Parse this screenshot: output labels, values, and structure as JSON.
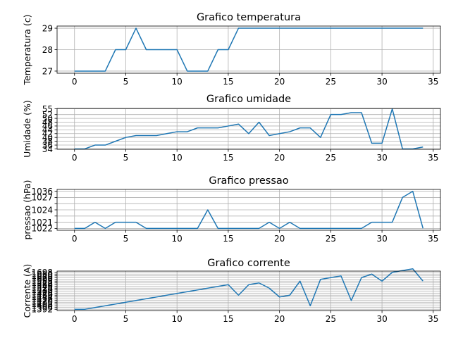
{
  "chart_data": [
    {
      "type": "line",
      "title": "Grafico temperatura",
      "xlabel": "",
      "ylabel": "Temperatura (c)",
      "xlim": [
        -1.7,
        35.7
      ],
      "ylim": [
        26.9,
        29.1
      ],
      "grid": true,
      "xticks": [
        0,
        5,
        10,
        15,
        20,
        25,
        30,
        35
      ],
      "xtick_labels": [
        "0",
        "5",
        "10",
        "15",
        "20",
        "25",
        "30",
        "35"
      ],
      "yticks": [
        27,
        28,
        29
      ],
      "ytick_labels": [
        "27",
        "28",
        "29"
      ],
      "color": "#1f77b4",
      "x": [
        0,
        1,
        2,
        3,
        4,
        5,
        6,
        7,
        8,
        9,
        10,
        11,
        12,
        13,
        14,
        15,
        16,
        17,
        18,
        19,
        20,
        21,
        22,
        23,
        24,
        25,
        26,
        27,
        28,
        29,
        30,
        31,
        32,
        33,
        34
      ],
      "values": [
        27,
        27,
        27,
        27,
        28,
        28,
        29,
        28,
        28,
        28,
        28,
        27,
        27,
        27,
        28,
        28,
        29,
        29,
        29,
        29,
        29,
        29,
        29,
        29,
        29,
        29,
        29,
        29,
        29,
        29,
        29,
        29,
        29,
        29,
        29
      ]
    },
    {
      "type": "line",
      "title": "Grafico umidade",
      "xlabel": "",
      "ylabel": "Umidade (%)",
      "xlim": [
        -1.7,
        35.7
      ],
      "ylim": [
        33.8,
        55.2
      ],
      "grid": true,
      "xticks": [
        0,
        5,
        10,
        15,
        20,
        25,
        30,
        35
      ],
      "xtick_labels": [
        "0",
        "5",
        "10",
        "15",
        "20",
        "25",
        "30",
        "35"
      ],
      "yticks": [
        34,
        36,
        38,
        40,
        42,
        44,
        46,
        48,
        50,
        52,
        55
      ],
      "ytick_labels": [
        "34",
        "36",
        "38",
        "40",
        "42",
        "44",
        "46",
        "48",
        "50",
        "52",
        "55"
      ],
      "color": "#1f77b4",
      "x": [
        0,
        1,
        2,
        3,
        4,
        5,
        6,
        7,
        8,
        9,
        10,
        11,
        12,
        13,
        14,
        15,
        16,
        17,
        18,
        19,
        20,
        21,
        22,
        23,
        24,
        25,
        26,
        27,
        28,
        29,
        30,
        31,
        32,
        33,
        34
      ],
      "values": [
        34,
        34,
        36,
        36,
        38,
        40,
        41,
        41,
        41,
        42,
        43,
        43,
        45,
        45,
        45,
        46,
        47,
        42,
        48,
        41,
        42,
        43,
        45,
        45,
        40,
        52,
        52,
        53,
        53,
        37,
        37,
        55,
        34,
        34,
        35
      ]
    },
    {
      "type": "line",
      "title": "Grafico pressao",
      "xlabel": "",
      "ylabel": "pressao (hPa)",
      "xlim": [
        -1.7,
        35.7
      ],
      "ylim": [
        -0.3,
        6.3
      ],
      "ycategorical": true,
      "grid": true,
      "xticks": [
        0,
        5,
        10,
        15,
        20,
        25,
        30,
        35
      ],
      "xtick_labels": [
        "0",
        "5",
        "10",
        "15",
        "20",
        "25",
        "30",
        "35"
      ],
      "yticks": [
        0,
        1,
        2,
        3,
        4,
        5,
        6
      ],
      "ytick_labels": [
        "1022",
        "1021",
        "",
        "1024",
        "",
        "1027",
        "1036"
      ],
      "color": "#1f77b4",
      "x": [
        0,
        1,
        2,
        3,
        4,
        5,
        6,
        7,
        8,
        9,
        10,
        11,
        12,
        13,
        14,
        15,
        16,
        17,
        18,
        19,
        20,
        21,
        22,
        23,
        24,
        25,
        26,
        27,
        28,
        29,
        30,
        31,
        32,
        33,
        34
      ],
      "values": [
        0,
        0,
        1,
        0,
        1,
        1,
        1,
        0,
        0,
        0,
        0,
        0,
        0,
        3,
        0,
        0,
        0,
        0,
        0,
        1,
        0,
        1,
        0,
        0,
        0,
        0,
        0,
        0,
        0,
        1,
        1,
        1,
        5,
        6,
        0
      ]
    },
    {
      "type": "line",
      "title": "Grafico corrente",
      "xlabel": "",
      "ylabel": "Corrente (A)",
      "xlim": [
        -1.7,
        35.7
      ],
      "ylim": [
        -0.7,
        21.7
      ],
      "ycategorical": true,
      "grid": true,
      "xticks": [
        0,
        5,
        10,
        15,
        20,
        25,
        30,
        35
      ],
      "xtick_labels": [
        "0",
        "5",
        "10",
        "15",
        "20",
        "25",
        "30",
        "35"
      ],
      "yticks": [
        0,
        1,
        2,
        3,
        4,
        5,
        6,
        7,
        8,
        9,
        10,
        11,
        12,
        13,
        14,
        15,
        16,
        17,
        18,
        19,
        20,
        21
      ],
      "ytick_labels": [
        "1392",
        "1396",
        "1400",
        "1405",
        "1410",
        "1420",
        "1432",
        "1444",
        "1460",
        "1476",
        "1500",
        "1510",
        "1524",
        "1540",
        "1560",
        "1572",
        "1588",
        "1600",
        "1620",
        "1640",
        "1660",
        "1698"
      ],
      "color": "#1f77b4",
      "x": [
        0,
        1,
        2,
        3,
        4,
        5,
        6,
        7,
        8,
        9,
        10,
        11,
        12,
        13,
        14,
        15,
        16,
        17,
        18,
        19,
        20,
        21,
        22,
        23,
        24,
        25,
        26,
        27,
        28,
        29,
        30,
        31,
        32,
        33,
        34
      ],
      "values": [
        0,
        0,
        1,
        2,
        3,
        4,
        5,
        6,
        7,
        8,
        9,
        10,
        11,
        12,
        13,
        14,
        8,
        14,
        15,
        12,
        7,
        8,
        16,
        2,
        17,
        18,
        19,
        5,
        18,
        20,
        16,
        21,
        22,
        23,
        16
      ]
    }
  ]
}
